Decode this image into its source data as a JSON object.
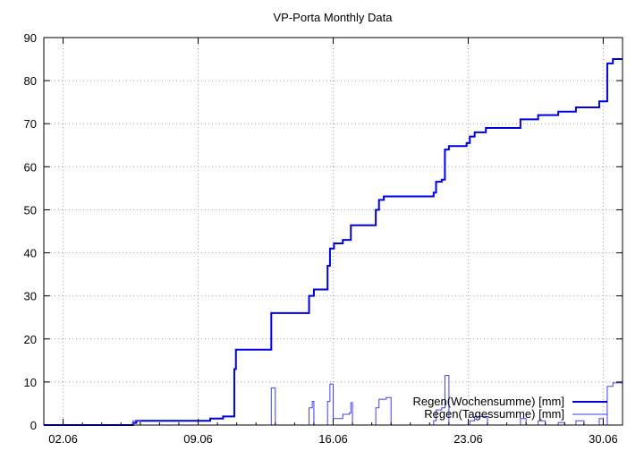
{
  "chart_data": {
    "type": "line",
    "title": "VP-Porta Monthly Data",
    "xlabel": "",
    "ylabel": "",
    "xlim": [
      "01.06 00:00",
      "01.07 00:00"
    ],
    "ylim": [
      0,
      90
    ],
    "x_ticks": [
      "02.06",
      "09.06",
      "16.06",
      "23.06",
      "30.06"
    ],
    "y_ticks": [
      0,
      10,
      20,
      30,
      40,
      50,
      60,
      70,
      80,
      90
    ],
    "grid": true,
    "legend_placement": "bottom-right",
    "series": [
      {
        "name": "Regen(Wochensumme) [mm]",
        "color": "#0000e0",
        "step": true,
        "points": [
          [
            "01.06 00:00",
            0
          ],
          [
            "05.06 15:00",
            0.5
          ],
          [
            "05.06 19:00",
            1.0
          ],
          [
            "09.06 15:00",
            1.5
          ],
          [
            "10.06 07:00",
            2.0
          ],
          [
            "10.06 21:00",
            13
          ],
          [
            "10.06 23:00",
            17.5
          ],
          [
            "12.06 19:00",
            26
          ],
          [
            "14.06 18:00",
            30
          ],
          [
            "15.06 00:00",
            31.5
          ],
          [
            "15.06 17:00",
            37
          ],
          [
            "15.06 20:00",
            41
          ],
          [
            "16.06 01:00",
            42.2
          ],
          [
            "16.06 12:00",
            43
          ],
          [
            "16.06 22:00",
            46.4
          ],
          [
            "18.06 05:00",
            50
          ],
          [
            "18.06 09:00",
            52.3
          ],
          [
            "18.06 15:00",
            53.1
          ],
          [
            "21.06 05:00",
            54
          ],
          [
            "21.06 08:00",
            56.5
          ],
          [
            "21.06 15:00",
            57
          ],
          [
            "21.06 19:00",
            64
          ],
          [
            "22.06 00:00",
            64.8
          ],
          [
            "22.06 22:00",
            65.5
          ],
          [
            "23.06 02:00",
            67
          ],
          [
            "23.06 08:00",
            68
          ],
          [
            "23.06 22:00",
            69
          ],
          [
            "25.06 17:00",
            71
          ],
          [
            "26.06 15:00",
            72
          ],
          [
            "27.06 16:00",
            72.8
          ],
          [
            "28.06 14:00",
            73.8
          ],
          [
            "29.06 19:00",
            75.2
          ],
          [
            "30.06 05:00",
            84
          ],
          [
            "30.06 12:00",
            85
          ],
          [
            "01.07 00:00",
            85
          ]
        ]
      },
      {
        "name": "Regen(Tagessumme) [mm]",
        "color": "#4040f0",
        "step": true,
        "points": [
          [
            "01.06 00:00",
            0
          ],
          [
            "05.06 15:00",
            1.0
          ],
          [
            "06.06 00:00",
            0
          ],
          [
            "12.06 19:00",
            8.6
          ],
          [
            "13.06 00:00",
            0
          ],
          [
            "14.06 18:00",
            4
          ],
          [
            "14.06 22:00",
            5.5
          ],
          [
            "15.06 00:00",
            0
          ],
          [
            "15.06 17:00",
            5.5
          ],
          [
            "15.06 20:00",
            9.5
          ],
          [
            "16.06 00:00",
            1.5
          ],
          [
            "16.06 12:00",
            2.5
          ],
          [
            "16.06 20:00",
            2.8
          ],
          [
            "16.06 22:00",
            5.2
          ],
          [
            "17.06 00:00",
            0
          ],
          [
            "18.06 05:00",
            4
          ],
          [
            "18.06 09:00",
            6
          ],
          [
            "18.06 18:00",
            6.4
          ],
          [
            "19.06 00:00",
            0
          ],
          [
            "21.06 05:00",
            1
          ],
          [
            "21.06 08:00",
            3.5
          ],
          [
            "21.06 15:00",
            4
          ],
          [
            "21.06 19:00",
            11.5
          ],
          [
            "22.06 00:00",
            0
          ],
          [
            "23.06 02:00",
            1
          ],
          [
            "23.06 08:00",
            2
          ],
          [
            "24.06 00:00",
            0
          ],
          [
            "25.06 17:00",
            1.5
          ],
          [
            "26.06 00:00",
            0
          ],
          [
            "26.06 15:00",
            1
          ],
          [
            "27.06 00:00",
            0
          ],
          [
            "27.06 16:00",
            0.6
          ],
          [
            "28.06 00:00",
            0
          ],
          [
            "28.06 14:00",
            1
          ],
          [
            "29.06 00:00",
            0
          ],
          [
            "29.06 19:00",
            1.5
          ],
          [
            "30.06 00:00",
            0
          ],
          [
            "30.06 05:00",
            9
          ],
          [
            "30.06 12:00",
            9.8
          ],
          [
            "01.07 00:00",
            9.8
          ]
        ]
      }
    ]
  }
}
